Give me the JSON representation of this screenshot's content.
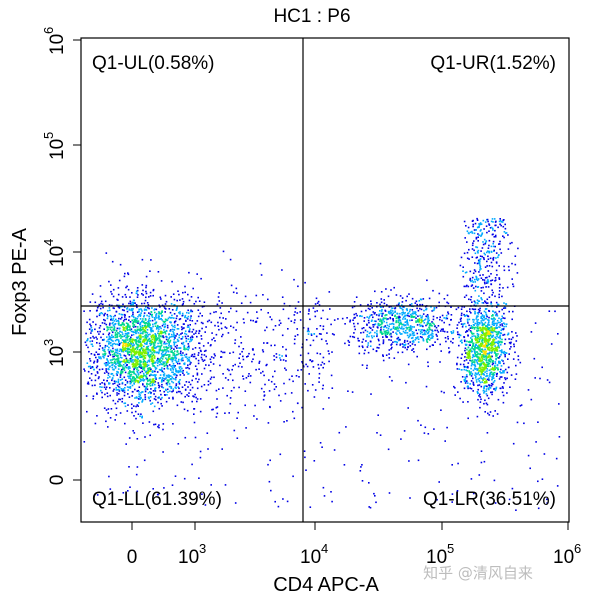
{
  "chart_data": {
    "type": "scatter",
    "title": "HC1 : P6",
    "xlabel": "CD4 APC-A",
    "ylabel": "Foxp3 PE-A",
    "x_scale": "biexponential",
    "y_scale": "biexponential",
    "x_ticks": [
      "0",
      "10^3",
      "10^4",
      "10^5",
      "10^6"
    ],
    "y_ticks": [
      "0",
      "10^3",
      "10^4",
      "10^5",
      "10^6"
    ],
    "gate": {
      "x": 8000,
      "y": 3000
    },
    "quadrants": [
      {
        "label": "Q1-UL(0.58%)",
        "name": "Q1-UL",
        "percent": 0.58,
        "position": "top-left"
      },
      {
        "label": "Q1-UR(1.52%)",
        "name": "Q1-UR",
        "percent": 1.52,
        "position": "top-right"
      },
      {
        "label": "Q1-LL(61.39%)",
        "name": "Q1-LL",
        "percent": 61.39,
        "position": "bottom-left"
      },
      {
        "label": "Q1-LR(36.51%)",
        "name": "Q1-LR",
        "percent": 36.51,
        "position": "bottom-right"
      }
    ],
    "populations": [
      {
        "center": [
          150,
          1100
        ],
        "spread": "dense"
      },
      {
        "center": [
          50000,
          1900
        ],
        "spread": "medium"
      },
      {
        "center": [
          220000,
          1100
        ],
        "spread": "dense"
      }
    ],
    "density_colors": [
      "#0000e6",
      "#00aaff",
      "#00d890",
      "#80f000",
      "#ffe000"
    ],
    "grid": false
  },
  "watermark": "知乎 @清风自来"
}
